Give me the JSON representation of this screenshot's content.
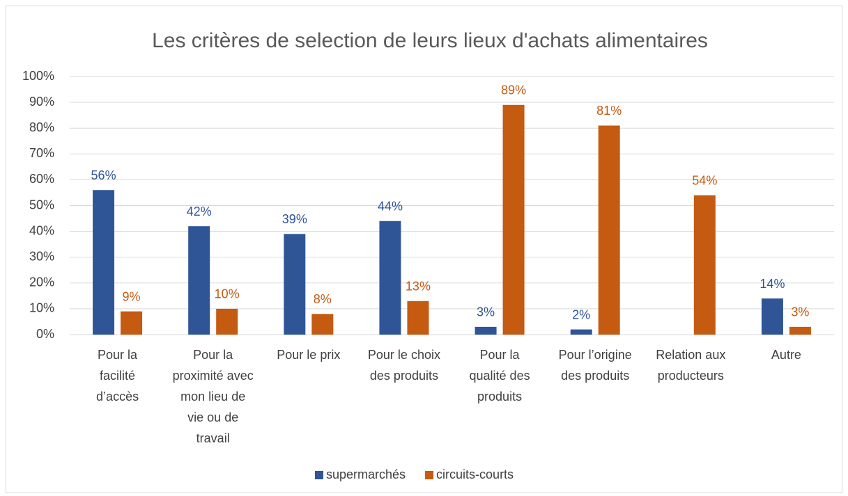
{
  "chart_data": {
    "type": "bar",
    "title": "Les critères de selection de leurs lieux d'achats alimentaires",
    "categories": [
      "Pour la facilité d’accès",
      "Pour la proximité avec mon lieu de vie ou de travail",
      "Pour le prix",
      "Pour le choix des produits",
      "Pour la qualité des produits",
      "Pour l’origine des produits",
      "Relation aux producteurs",
      "Autre"
    ],
    "series": [
      {
        "name": "supermarchés",
        "color": "#2f5597",
        "values": [
          56,
          42,
          39,
          44,
          3,
          2,
          null,
          14
        ],
        "value_labels": [
          "56%",
          "42%",
          "39%",
          "44%",
          "3%",
          "2%",
          null,
          "14%"
        ]
      },
      {
        "name": "circuits-courts",
        "color": "#c55a11",
        "values": [
          9,
          10,
          8,
          13,
          89,
          81,
          54,
          3
        ],
        "value_labels": [
          "9%",
          "10%",
          "8%",
          "13%",
          "89%",
          "81%",
          "54%",
          "3%"
        ]
      }
    ],
    "ylim": [
      0,
      100
    ],
    "yticks": [
      {
        "value": 0,
        "label": "0%"
      },
      {
        "value": 10,
        "label": "10%"
      },
      {
        "value": 20,
        "label": "20%"
      },
      {
        "value": 30,
        "label": "30%"
      },
      {
        "value": 40,
        "label": "40%"
      },
      {
        "value": 50,
        "label": "50%"
      },
      {
        "value": 60,
        "label": "60%"
      },
      {
        "value": 70,
        "label": "70%"
      },
      {
        "value": 80,
        "label": "80%"
      },
      {
        "value": 90,
        "label": "90%"
      },
      {
        "value": 100,
        "label": "100%"
      }
    ],
    "grid": true,
    "legend": "bottom"
  }
}
